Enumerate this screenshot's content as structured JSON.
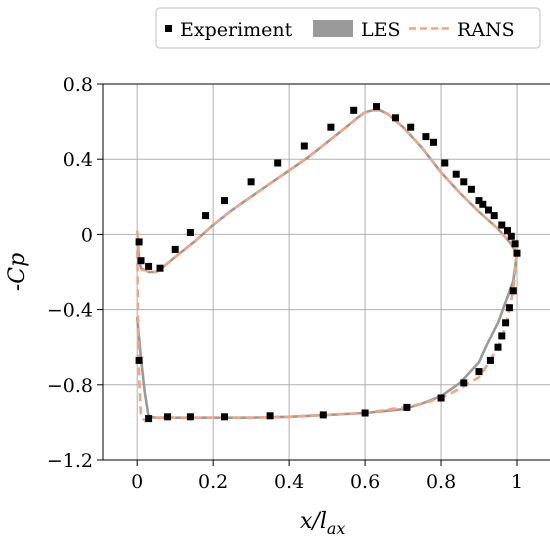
{
  "chart_data": {
    "type": "line",
    "title": "",
    "xlabel": "x/l",
    "xlabel_subscript": "ax",
    "ylabel": "-Cp",
    "xlim": [
      -0.09,
      1.1
    ],
    "ylim": [
      -1.2,
      0.8
    ],
    "x_ticks": [
      0,
      0.2,
      0.4,
      0.6,
      0.8,
      1
    ],
    "x_tick_labels": [
      "0",
      "0.2",
      "0.4",
      "0.6",
      "0.8",
      "1"
    ],
    "y_ticks": [
      0.8,
      0.4,
      0,
      -0.4,
      -0.8,
      -1.2
    ],
    "y_tick_labels": [
      "0.8",
      "0.4",
      "0",
      "−0.4",
      "−0.8",
      "−1.2"
    ],
    "grid": true,
    "legend_position": "top",
    "series": [
      {
        "name": "Experiment",
        "kind": "markers",
        "color": "#000000",
        "x": [
          0.005,
          0.01,
          0.03,
          0.06,
          0.1,
          0.14,
          0.18,
          0.23,
          0.3,
          0.37,
          0.44,
          0.51,
          0.57,
          0.63,
          0.68,
          0.72,
          0.76,
          0.78,
          0.81,
          0.84,
          0.86,
          0.88,
          0.9,
          0.91,
          0.925,
          0.94,
          0.96,
          0.975,
          0.985,
          0.995,
          0.005,
          0.03,
          0.08,
          0.14,
          0.23,
          0.35,
          0.49,
          0.6,
          0.71,
          0.8,
          0.86,
          0.9,
          0.93,
          0.95,
          0.96,
          0.97,
          0.98,
          0.99,
          1.0
        ],
        "y": [
          -0.04,
          -0.14,
          -0.17,
          -0.18,
          -0.08,
          0.01,
          0.1,
          0.18,
          0.28,
          0.38,
          0.47,
          0.57,
          0.66,
          0.68,
          0.62,
          0.57,
          0.52,
          0.49,
          0.38,
          0.32,
          0.28,
          0.24,
          0.18,
          0.16,
          0.13,
          0.1,
          0.05,
          0.02,
          -0.01,
          -0.05,
          -0.67,
          -0.98,
          -0.97,
          -0.97,
          -0.97,
          -0.965,
          -0.96,
          -0.95,
          -0.92,
          -0.87,
          -0.79,
          -0.73,
          -0.67,
          -0.6,
          -0.54,
          -0.47,
          -0.39,
          -0.3,
          -0.1
        ]
      },
      {
        "name": "LES",
        "kind": "line",
        "color": "#9a9a9a",
        "x": [
          0.0,
          0.003,
          0.006,
          0.01,
          0.02,
          0.03,
          0.05,
          0.07,
          0.1,
          0.15,
          0.2,
          0.25,
          0.3,
          0.35,
          0.4,
          0.45,
          0.5,
          0.55,
          0.58,
          0.6,
          0.62,
          0.64,
          0.66,
          0.7,
          0.75,
          0.8,
          0.85,
          0.9,
          0.95,
          0.98,
          1.0,
          0.99,
          0.97,
          0.95,
          0.92,
          0.9,
          0.85,
          0.8,
          0.75,
          0.7,
          0.6,
          0.5,
          0.4,
          0.3,
          0.2,
          0.1,
          0.05,
          0.03,
          0.02,
          0.01,
          0.005,
          0.0
        ],
        "y": [
          -0.02,
          -0.08,
          -0.15,
          -0.18,
          -0.19,
          -0.2,
          -0.2,
          -0.17,
          -0.12,
          -0.04,
          0.05,
          0.13,
          0.2,
          0.27,
          0.34,
          0.41,
          0.49,
          0.57,
          0.62,
          0.65,
          0.66,
          0.66,
          0.64,
          0.57,
          0.46,
          0.33,
          0.22,
          0.12,
          0.03,
          -0.04,
          -0.1,
          -0.25,
          -0.36,
          -0.47,
          -0.59,
          -0.68,
          -0.79,
          -0.86,
          -0.9,
          -0.93,
          -0.95,
          -0.96,
          -0.97,
          -0.975,
          -0.975,
          -0.975,
          -0.975,
          -0.97,
          -0.84,
          -0.66,
          -0.55,
          -0.44
        ]
      },
      {
        "name": "RANS",
        "kind": "dashed-line",
        "color": "#f0a585",
        "x": [
          0.0,
          0.003,
          0.005,
          0.008,
          0.012,
          0.02,
          0.03,
          0.05,
          0.07,
          0.1,
          0.15,
          0.2,
          0.25,
          0.3,
          0.35,
          0.4,
          0.45,
          0.5,
          0.55,
          0.58,
          0.6,
          0.62,
          0.64,
          0.66,
          0.7,
          0.75,
          0.8,
          0.85,
          0.9,
          0.95,
          0.98,
          1.0,
          0.995,
          0.99,
          0.98,
          0.97,
          0.95,
          0.92,
          0.9,
          0.85,
          0.8,
          0.75,
          0.7,
          0.6,
          0.5,
          0.4,
          0.3,
          0.2,
          0.1,
          0.05,
          0.02,
          0.01,
          0.005,
          0.003,
          0.0
        ],
        "y": [
          0.02,
          -0.05,
          -0.12,
          -0.17,
          -0.19,
          -0.19,
          -0.2,
          -0.2,
          -0.17,
          -0.12,
          -0.04,
          0.05,
          0.13,
          0.2,
          0.27,
          0.34,
          0.41,
          0.49,
          0.57,
          0.62,
          0.65,
          0.66,
          0.66,
          0.64,
          0.57,
          0.46,
          0.33,
          0.22,
          0.12,
          0.03,
          -0.04,
          -0.09,
          -0.2,
          -0.3,
          -0.4,
          -0.49,
          -0.6,
          -0.7,
          -0.76,
          -0.82,
          -0.87,
          -0.9,
          -0.92,
          -0.95,
          -0.96,
          -0.97,
          -0.975,
          -0.975,
          -0.975,
          -0.975,
          -0.99,
          -0.97,
          -0.75,
          -0.55,
          -0.05
        ]
      }
    ]
  }
}
